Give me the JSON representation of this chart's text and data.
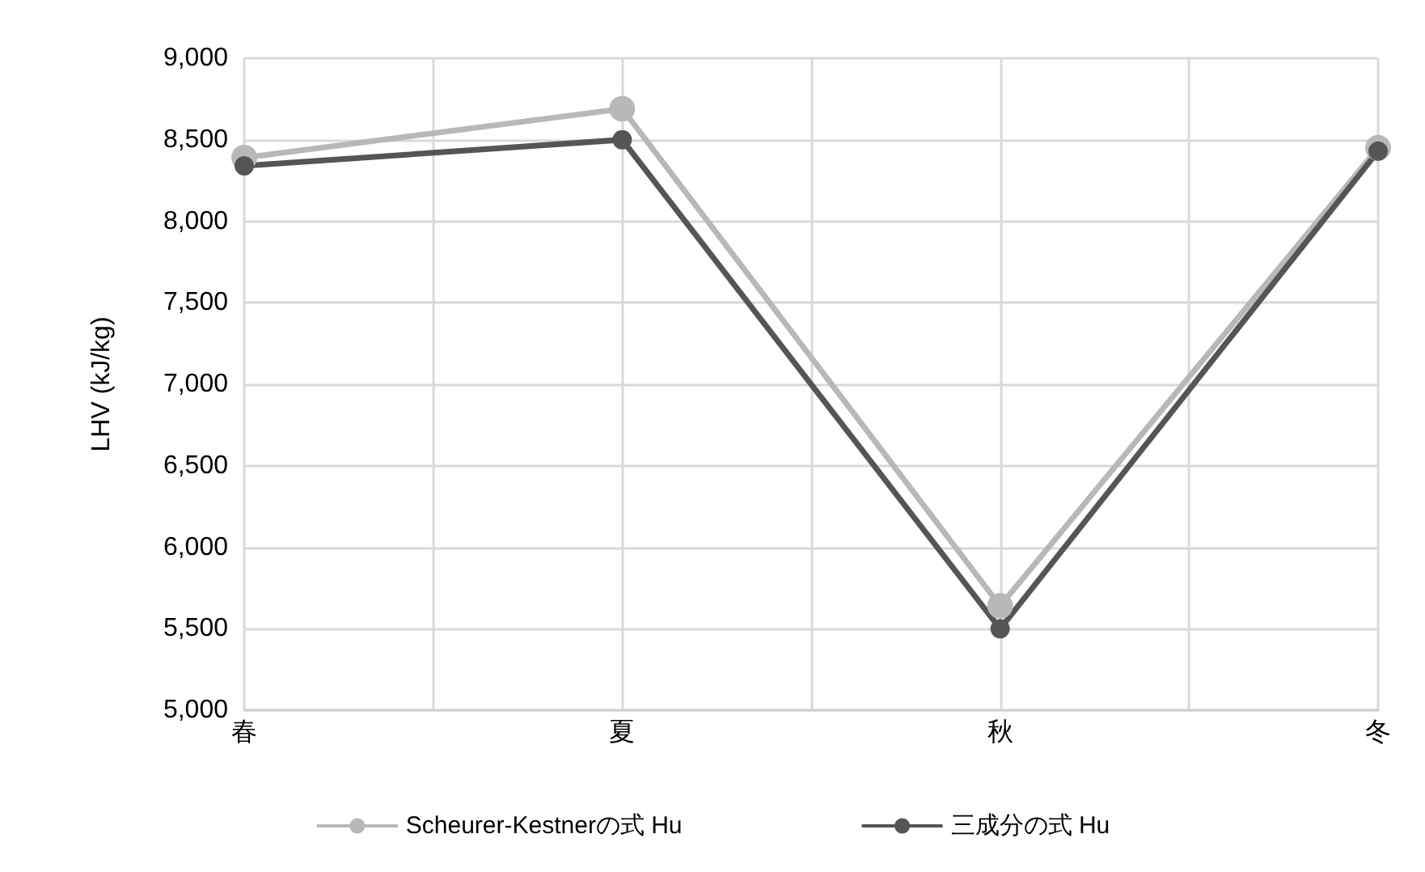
{
  "chart_data": {
    "type": "line",
    "ylabel": "LHV (kJ/kg)",
    "categories": [
      "春",
      "夏",
      "秋",
      "冬"
    ],
    "series": [
      {
        "name": "Scheurer-Kestnerの式 Hu",
        "color": "#b8b8b8",
        "values": [
          8390,
          8690,
          5640,
          8450
        ]
      },
      {
        "name": "三成分の式 Hu",
        "color": "#555555",
        "values": [
          8340,
          8500,
          5500,
          8430
        ]
      }
    ],
    "ylim": [
      5000,
      9000
    ],
    "yticks": [
      {
        "value": 5000,
        "label": "5,000"
      },
      {
        "value": 5500,
        "label": "5,500"
      },
      {
        "value": 6000,
        "label": "6,000"
      },
      {
        "value": 6500,
        "label": "6,500"
      },
      {
        "value": 7000,
        "label": "7,000"
      },
      {
        "value": 7500,
        "label": "7,500"
      },
      {
        "value": 8000,
        "label": "8,000"
      },
      {
        "value": 8500,
        "label": "8,500"
      },
      {
        "value": 9000,
        "label": "9,000"
      }
    ],
    "grid": true,
    "legend": "bottom",
    "marker": "circle",
    "line_style": "solid"
  }
}
